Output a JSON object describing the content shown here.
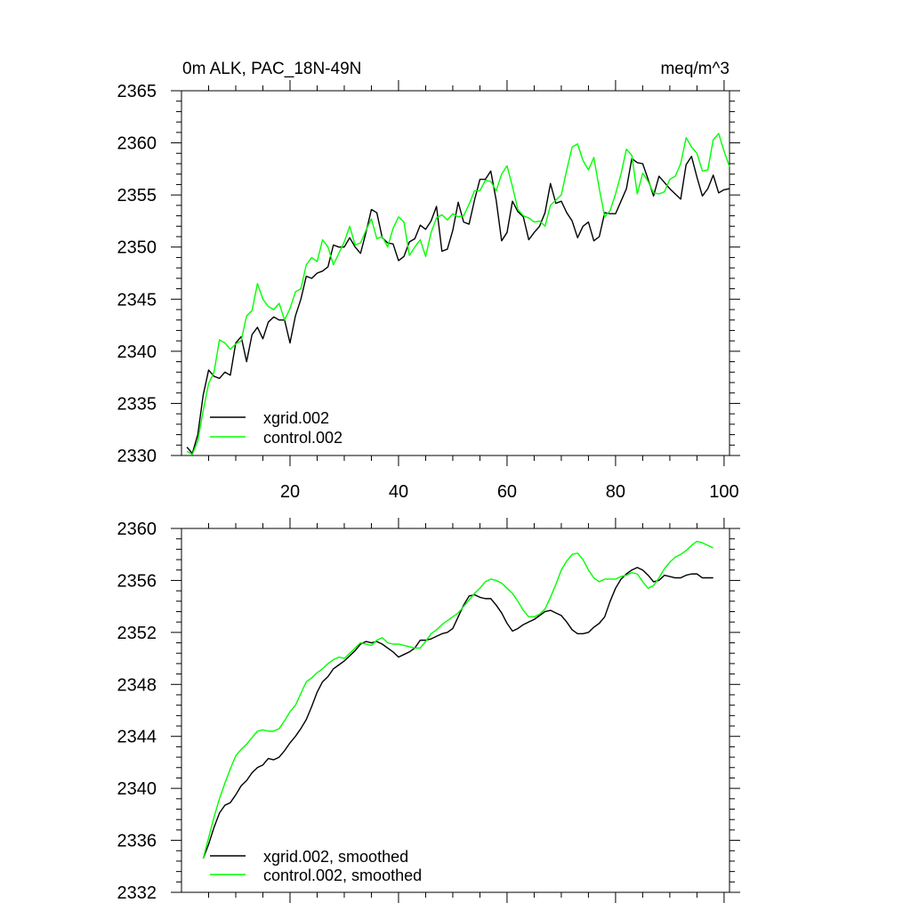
{
  "colors": {
    "series1": "#000000",
    "series2": "#00ff00",
    "axis": "#000000",
    "background": "#ffffff"
  },
  "chart_data": [
    {
      "type": "line",
      "title_left": "0m ALK, PAC_18N-49N",
      "title_right": "meq/m^3",
      "xlabel": "",
      "ylabel": "",
      "xlim": [
        0,
        101
      ],
      "ylim": [
        2330,
        2365
      ],
      "x_ticks": [
        20,
        40,
        60,
        80,
        100
      ],
      "x_tick_labels": [
        "20",
        "40",
        "60",
        "80",
        "100"
      ],
      "y_ticks": [
        2330,
        2335,
        2340,
        2345,
        2350,
        2355,
        2360,
        2365
      ],
      "y_tick_labels": [
        "2330",
        "2335",
        "2340",
        "2345",
        "2350",
        "2355",
        "2360",
        "2365"
      ],
      "legend": "bottom-left",
      "series": [
        {
          "name": "xgrid.002",
          "color": "#000000",
          "x": [
            1,
            2,
            3,
            4,
            5,
            6,
            7,
            8,
            9,
            10,
            11,
            12,
            13,
            14,
            15,
            16,
            17,
            18,
            19,
            20,
            21,
            22,
            23,
            24,
            25,
            26,
            27,
            28,
            29,
            30,
            31,
            32,
            33,
            34,
            35,
            36,
            37,
            38,
            39,
            40,
            41,
            42,
            43,
            44,
            45,
            46,
            47,
            48,
            49,
            50,
            51,
            52,
            53,
            54,
            55,
            56,
            57,
            58,
            59,
            60,
            61,
            62,
            63,
            64,
            65,
            66,
            67,
            68,
            69,
            70,
            71,
            72,
            73,
            74,
            75,
            76,
            77,
            78,
            79,
            80,
            81,
            82,
            83,
            84,
            85,
            86,
            87,
            88,
            89,
            90,
            91,
            92,
            93,
            94,
            95,
            96,
            97,
            98,
            99,
            100,
            101
          ],
          "values": [
            2330.8,
            2330.2,
            2332.0,
            2335.8,
            2338.2,
            2337.6,
            2337.4,
            2338.0,
            2337.7,
            2340.8,
            2341.4,
            2339.0,
            2341.6,
            2342.3,
            2341.2,
            2342.8,
            2343.3,
            2343.0,
            2343.0,
            2340.8,
            2343.4,
            2345.0,
            2347.2,
            2347.0,
            2347.5,
            2347.7,
            2348.1,
            2350.2,
            2350.0,
            2350.0,
            2350.9,
            2350.0,
            2349.4,
            2351.4,
            2353.6,
            2353.3,
            2350.9,
            2350.4,
            2350.3,
            2348.7,
            2349.1,
            2350.5,
            2350.8,
            2352.1,
            2351.7,
            2352.5,
            2353.9,
            2349.6,
            2349.8,
            2351.6,
            2354.3,
            2352.4,
            2352.2,
            2354.5,
            2356.5,
            2356.5,
            2357.3,
            2354.5,
            2350.6,
            2351.4,
            2354.4,
            2353.4,
            2352.9,
            2350.7,
            2351.4,
            2352.0,
            2353.3,
            2356.1,
            2354.2,
            2354.4,
            2353.3,
            2352.5,
            2350.9,
            2352.0,
            2352.4,
            2350.6,
            2351.0,
            2353.3,
            2353.2,
            2353.2,
            2354.4,
            2355.6,
            2358.5,
            2358.1,
            2358.0,
            2356.5,
            2354.9,
            2356.8,
            2356.2,
            2355.6,
            2355.1,
            2354.6,
            2357.9,
            2358.7,
            2356.7,
            2354.9,
            2355.6,
            2356.9,
            2355.2,
            2355.5,
            2355.6
          ]
        },
        {
          "name": "control.002",
          "color": "#00ff00",
          "x": [
            1,
            2,
            3,
            4,
            5,
            6,
            7,
            8,
            9,
            10,
            11,
            12,
            13,
            14,
            15,
            16,
            17,
            18,
            19,
            20,
            21,
            22,
            23,
            24,
            25,
            26,
            27,
            28,
            29,
            30,
            31,
            32,
            33,
            34,
            35,
            36,
            37,
            38,
            39,
            40,
            41,
            42,
            43,
            44,
            45,
            46,
            47,
            48,
            49,
            50,
            51,
            52,
            53,
            54,
            55,
            56,
            57,
            58,
            59,
            60,
            61,
            62,
            63,
            64,
            65,
            66,
            67,
            68,
            69,
            70,
            71,
            72,
            73,
            74,
            75,
            76,
            77,
            78,
            79,
            80,
            81,
            82,
            83,
            84,
            85,
            86,
            87,
            88,
            89,
            90,
            91,
            92,
            93,
            94,
            95,
            96,
            97,
            98,
            99,
            100,
            101
          ],
          "values": [
            2330.4,
            2330.1,
            2331.4,
            2334.3,
            2336.9,
            2338.0,
            2341.1,
            2340.8,
            2340.2,
            2340.7,
            2341.0,
            2343.4,
            2343.9,
            2346.5,
            2345.0,
            2344.3,
            2344.0,
            2344.6,
            2343.0,
            2344.1,
            2345.7,
            2346.0,
            2348.3,
            2349.0,
            2348.6,
            2350.7,
            2350.0,
            2348.3,
            2349.4,
            2350.5,
            2352.0,
            2350.2,
            2350.4,
            2351.6,
            2352.7,
            2350.8,
            2351.0,
            2350.0,
            2351.8,
            2352.9,
            2352.4,
            2349.2,
            2350.0,
            2350.7,
            2349.1,
            2351.4,
            2352.8,
            2353.1,
            2352.6,
            2353.2,
            2352.9,
            2353.0,
            2354.1,
            2355.4,
            2355.4,
            2356.4,
            2356.3,
            2355.4,
            2357.0,
            2357.8,
            2355.8,
            2353.6,
            2353.0,
            2352.8,
            2352.4,
            2352.5,
            2352.0,
            2354.0,
            2354.5,
            2355.0,
            2357.4,
            2359.6,
            2359.9,
            2358.3,
            2357.4,
            2358.6,
            2355.6,
            2352.9,
            2353.5,
            2355.1,
            2357.0,
            2359.4,
            2358.8,
            2355.1,
            2357.1,
            2356.3,
            2355.2,
            2355.1,
            2355.3,
            2356.5,
            2356.8,
            2358.0,
            2360.5,
            2359.6,
            2359.0,
            2357.3,
            2357.4,
            2360.3,
            2360.9,
            2359.2,
            2357.7
          ]
        }
      ]
    },
    {
      "type": "line",
      "title_left": "",
      "title_right": "",
      "xlabel": "",
      "ylabel": "",
      "xlim": [
        0,
        101
      ],
      "ylim": [
        2332,
        2360
      ],
      "x_ticks": [
        20,
        40,
        60,
        80,
        100
      ],
      "x_tick_labels": [],
      "y_ticks": [
        2332,
        2336,
        2340,
        2344,
        2348,
        2352,
        2356,
        2360
      ],
      "y_tick_labels": [
        "2332",
        "2336",
        "2340",
        "2344",
        "2348",
        "2352",
        "2356",
        "2360"
      ],
      "legend": "bottom-left",
      "series": [
        {
          "name": "xgrid.002, smoothed",
          "color": "#000000",
          "x": [
            4,
            5,
            6,
            7,
            8,
            9,
            10,
            11,
            12,
            13,
            14,
            15,
            16,
            17,
            18,
            19,
            20,
            21,
            22,
            23,
            24,
            25,
            26,
            27,
            28,
            29,
            30,
            31,
            32,
            33,
            34,
            35,
            36,
            37,
            38,
            39,
            40,
            41,
            42,
            43,
            44,
            45,
            46,
            47,
            48,
            49,
            50,
            51,
            52,
            53,
            54,
            55,
            56,
            57,
            58,
            59,
            60,
            61,
            62,
            63,
            64,
            65,
            66,
            67,
            68,
            69,
            70,
            71,
            72,
            73,
            74,
            75,
            76,
            77,
            78,
            79,
            80,
            81,
            82,
            83,
            84,
            85,
            86,
            87,
            88,
            89,
            90,
            91,
            92,
            93,
            94,
            95,
            96,
            97,
            98
          ],
          "values": [
            2334.6,
            2335.7,
            2337.0,
            2338.1,
            2338.7,
            2338.9,
            2339.5,
            2340.2,
            2340.6,
            2341.2,
            2341.6,
            2341.8,
            2342.3,
            2342.2,
            2342.4,
            2342.9,
            2343.5,
            2344.0,
            2344.6,
            2345.3,
            2346.3,
            2347.4,
            2348.2,
            2348.6,
            2349.2,
            2349.5,
            2349.8,
            2350.2,
            2350.6,
            2351.1,
            2351.3,
            2351.2,
            2351.3,
            2351.1,
            2350.8,
            2350.5,
            2350.1,
            2350.3,
            2350.5,
            2350.8,
            2351.4,
            2351.4,
            2351.5,
            2351.7,
            2351.9,
            2352.0,
            2352.3,
            2353.2,
            2354.1,
            2354.8,
            2354.9,
            2354.7,
            2354.6,
            2354.6,
            2354.1,
            2353.5,
            2352.7,
            2352.1,
            2352.3,
            2352.6,
            2352.8,
            2353.0,
            2353.3,
            2353.6,
            2353.7,
            2353.5,
            2353.3,
            2352.8,
            2352.2,
            2351.9,
            2351.9,
            2352.0,
            2352.4,
            2352.7,
            2353.2,
            2354.4,
            2355.4,
            2356.1,
            2356.5,
            2356.8,
            2357.0,
            2356.8,
            2356.4,
            2355.9,
            2356.0,
            2356.4,
            2356.3,
            2356.2,
            2356.2,
            2356.4,
            2356.5,
            2356.5,
            2356.2,
            2356.2,
            2356.2
          ]
        },
        {
          "name": "control.002, smoothed",
          "color": "#00ff00",
          "x": [
            4,
            5,
            6,
            7,
            8,
            9,
            10,
            11,
            12,
            13,
            14,
            15,
            16,
            17,
            18,
            19,
            20,
            21,
            22,
            23,
            24,
            25,
            26,
            27,
            28,
            29,
            30,
            31,
            32,
            33,
            34,
            35,
            36,
            37,
            38,
            39,
            40,
            41,
            42,
            43,
            44,
            45,
            46,
            47,
            48,
            49,
            50,
            51,
            52,
            53,
            54,
            55,
            56,
            57,
            58,
            59,
            60,
            61,
            62,
            63,
            64,
            65,
            66,
            67,
            68,
            69,
            70,
            71,
            72,
            73,
            74,
            75,
            76,
            77,
            78,
            79,
            80,
            81,
            82,
            83,
            84,
            85,
            86,
            87,
            88,
            89,
            90,
            91,
            92,
            93,
            94,
            95,
            96,
            97,
            98
          ],
          "values": [
            2334.6,
            2336.2,
            2337.8,
            2339.2,
            2340.4,
            2341.5,
            2342.5,
            2343.0,
            2343.4,
            2343.9,
            2344.4,
            2344.5,
            2344.4,
            2344.4,
            2344.6,
            2345.2,
            2345.9,
            2346.4,
            2347.3,
            2348.2,
            2348.5,
            2348.9,
            2349.2,
            2349.6,
            2349.9,
            2350.1,
            2350.0,
            2350.4,
            2350.8,
            2351.2,
            2351.1,
            2351.0,
            2351.4,
            2351.6,
            2351.2,
            2351.1,
            2351.1,
            2351.0,
            2350.9,
            2350.8,
            2350.8,
            2351.3,
            2351.9,
            2352.2,
            2352.6,
            2352.9,
            2353.2,
            2353.5,
            2354.0,
            2354.5,
            2355.0,
            2355.4,
            2355.9,
            2356.1,
            2356.0,
            2355.8,
            2355.4,
            2355.0,
            2354.4,
            2353.7,
            2353.2,
            2353.2,
            2353.4,
            2353.8,
            2354.7,
            2355.7,
            2356.8,
            2357.5,
            2358.0,
            2358.1,
            2357.6,
            2356.8,
            2356.2,
            2355.9,
            2356.1,
            2356.1,
            2356.1,
            2356.3,
            2356.4,
            2356.6,
            2356.5,
            2355.9,
            2355.4,
            2355.6,
            2356.2,
            2356.9,
            2357.4,
            2357.8,
            2358.0,
            2358.3,
            2358.7,
            2359.0,
            2358.9,
            2358.7,
            2358.5
          ]
        }
      ]
    }
  ]
}
